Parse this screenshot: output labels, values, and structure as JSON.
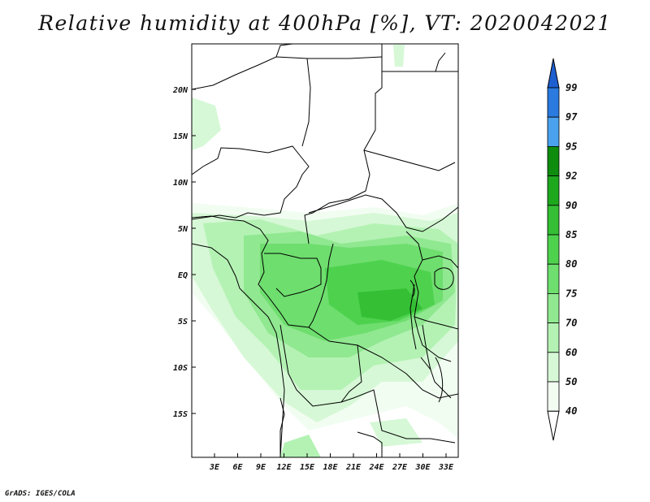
{
  "title": "Relative humidity at 400hPa [%], VT: 2020042021",
  "credit": "GrADS: IGES/COLA",
  "map": {
    "lat_labels": [
      "20N",
      "15N",
      "10N",
      "5N",
      "EQ",
      "5S",
      "10S",
      "15S"
    ],
    "lon_labels": [
      "3E",
      "6E",
      "9E",
      "12E",
      "15E",
      "18E",
      "21E",
      "24E",
      "27E",
      "30E",
      "33E"
    ]
  },
  "colorbar": {
    "labels": [
      "99",
      "97",
      "95",
      "92",
      "90",
      "85",
      "80",
      "75",
      "70",
      "60",
      "50",
      "40"
    ],
    "colors": [
      "#1e5fd0",
      "#2a7ae0",
      "#4aa2ee",
      "#0e8c0e",
      "#1ea81e",
      "#34bf34",
      "#4ed24e",
      "#6ede6e",
      "#90e890",
      "#b4f2b4",
      "#d6f8d6",
      "#f2fdf2"
    ]
  }
}
